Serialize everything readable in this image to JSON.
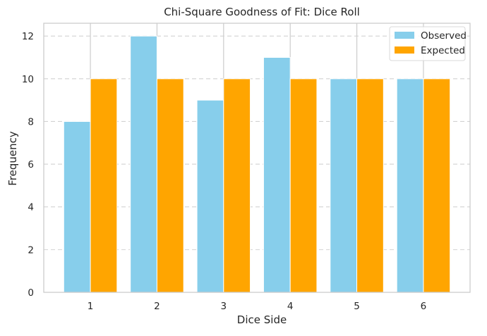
{
  "chart_data": {
    "type": "bar",
    "title": "Chi-Square Goodness of Fit: Dice Roll",
    "xlabel": "Dice Side",
    "ylabel": "Frequency",
    "categories": [
      "1",
      "2",
      "3",
      "4",
      "5",
      "6"
    ],
    "series": [
      {
        "name": "Observed",
        "values": [
          8,
          12,
          9,
          11,
          10,
          10
        ],
        "color": "#87CEEB"
      },
      {
        "name": "Expected",
        "values": [
          10,
          10,
          10,
          10,
          10,
          10
        ],
        "color": "#FFA500"
      }
    ],
    "ylim": [
      0,
      12.6
    ],
    "yticks": [
      0,
      2,
      4,
      6,
      8,
      10,
      12
    ],
    "grid": {
      "x": true,
      "y": true,
      "y_style": "dashed"
    },
    "legend": {
      "position": "top-right"
    }
  }
}
